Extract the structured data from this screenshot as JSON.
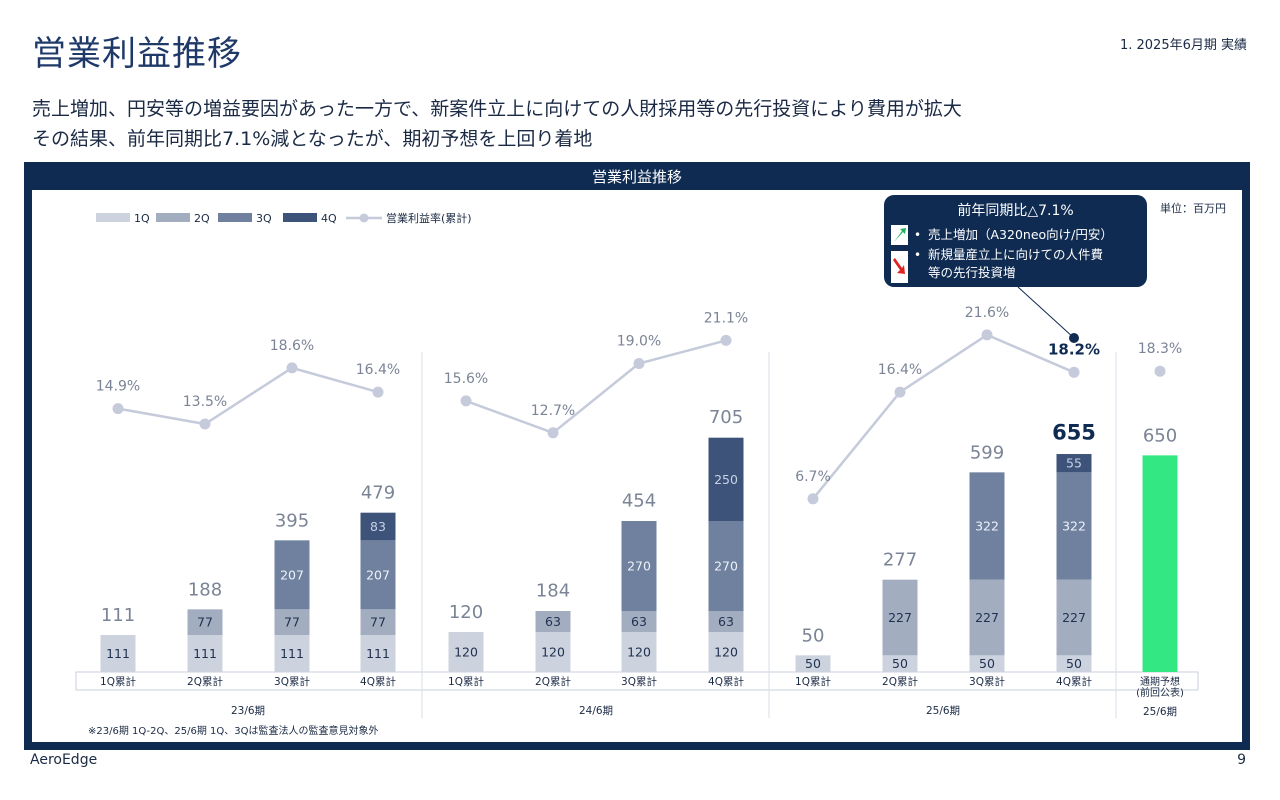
{
  "header": {
    "title": "営業利益推移",
    "section": "1. 2025年6月期 実績",
    "subtitle_line1": "売上増加、円安等の増益要因があった一方で、新案件立上に向けての人財採用等の先行投資により費用が拡大",
    "subtitle_line2": "その結果、前年同期比7.1%減となったが、期初予想を上回り着地"
  },
  "footer": {
    "company": "AeroEdge",
    "page": "9"
  },
  "colors": {
    "q1": "#ccd3de",
    "q2": "#a3adc0",
    "q3": "#6f819e",
    "q4": "#3d5379",
    "forecast": "#33e883",
    "line": "#c5cbdb",
    "navy": "#0f2b52"
  },
  "chart_data": {
    "type": "bar",
    "title": "営業利益推移",
    "unit": "単位：百万円",
    "legend": [
      "1Q",
      "2Q",
      "3Q",
      "4Q",
      "営業利益率(累計)"
    ],
    "legend_position": "top-left",
    "ylim": [
      0,
      750
    ],
    "categories": [
      "1Q累計",
      "2Q累計",
      "3Q累計",
      "4Q累計",
      "1Q累計",
      "2Q累計",
      "3Q累計",
      "4Q累計",
      "1Q累計",
      "2Q累計",
      "3Q累計",
      "4Q累計",
      "通期予想\n(前回公表)"
    ],
    "groups": [
      {
        "label": "23/6期",
        "indices": [
          0,
          1,
          2,
          3
        ]
      },
      {
        "label": "24/6期",
        "indices": [
          4,
          5,
          6,
          7
        ]
      },
      {
        "label": "25/6期",
        "indices": [
          8,
          9,
          10,
          11
        ]
      },
      {
        "label": "25/6期",
        "indices": [
          12
        ]
      }
    ],
    "series": [
      {
        "name": "1Q",
        "values": [
          111,
          111,
          111,
          111,
          120,
          120,
          120,
          120,
          50,
          50,
          50,
          50,
          null
        ]
      },
      {
        "name": "2Q",
        "values": [
          null,
          77,
          77,
          77,
          null,
          63,
          63,
          63,
          null,
          227,
          227,
          227,
          null
        ]
      },
      {
        "name": "3Q",
        "values": [
          null,
          null,
          207,
          207,
          null,
          null,
          270,
          270,
          null,
          null,
          322,
          322,
          null
        ]
      },
      {
        "name": "4Q",
        "values": [
          null,
          null,
          null,
          83,
          null,
          null,
          null,
          250,
          null,
          null,
          null,
          55,
          null
        ]
      },
      {
        "name": "通期予想(前回公表)",
        "values": [
          null,
          null,
          null,
          null,
          null,
          null,
          null,
          null,
          null,
          null,
          null,
          null,
          650
        ]
      }
    ],
    "totals": [
      111,
      188,
      395,
      479,
      120,
      184,
      454,
      705,
      50,
      277,
      599,
      655,
      650
    ],
    "margin": {
      "name": "営業利益率(累計)",
      "values": [
        14.9,
        13.5,
        18.6,
        16.4,
        15.6,
        12.7,
        19.0,
        21.1,
        6.7,
        16.4,
        21.6,
        18.2,
        18.3
      ],
      "labels": [
        "14.9%",
        "13.5%",
        "18.6%",
        "16.4%",
        "15.6%",
        "12.7%",
        "19.0%",
        "21.1%",
        "6.7%",
        "16.4%",
        "21.6%",
        "18.2%",
        "18.3%"
      ]
    },
    "callout": {
      "title": "前年同期比△7.1%",
      "up_item": "売上増加（A320neo向け/円安）",
      "down_item_line1": "新規量産立上に向けての人件費",
      "down_item_line2": "等の先行投資増"
    },
    "note": "※23/6期 1Q-2Q、25/6期 1Q、3Qは監査法人の監査意見対象外"
  }
}
